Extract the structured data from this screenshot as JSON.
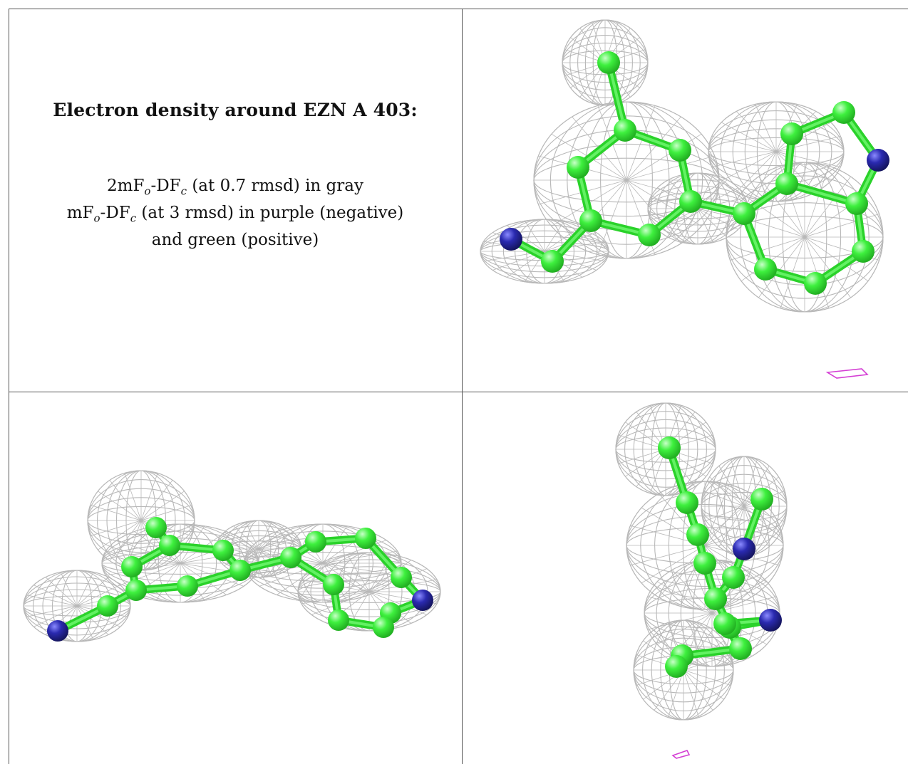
{
  "caption": {
    "title": "Electron density around EZN A 403:",
    "line1_pre": "2mF",
    "line1_sub1": "o",
    "line1_mid": "-DF",
    "line1_sub2": "c",
    "line1_post": " (at 0.7 rmsd) in gray",
    "line2_pre": "mF",
    "line2_sub1": "o",
    "line2_mid": "-DF",
    "line2_sub2": "c",
    "line2_post": " (at 3 rmsd) in purple (negative)",
    "line3": "and green (positive)"
  },
  "colors": {
    "mesh": "#b8b8b8",
    "carbon": "#3ef03e",
    "nitrogen": "#2a2ab0",
    "negative_density": "#d43fd4",
    "grid": "#555555"
  },
  "views": [
    {
      "name": "view-top-right"
    },
    {
      "name": "view-bottom-left"
    },
    {
      "name": "view-bottom-right"
    }
  ]
}
